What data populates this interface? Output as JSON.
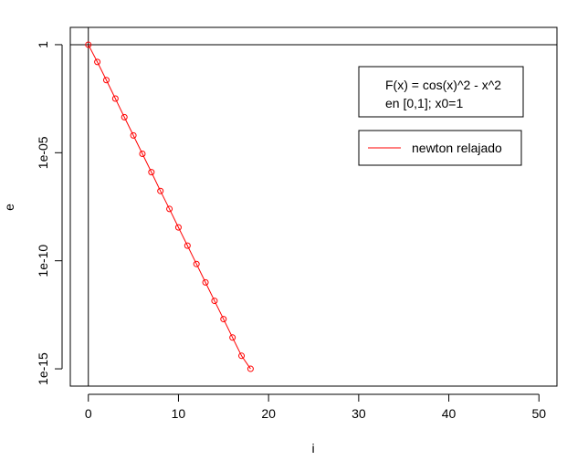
{
  "chart_data": {
    "type": "line",
    "xlabel": "i",
    "ylabel": "e",
    "xlim": [
      -2,
      52
    ],
    "ylim_log10": [
      -15.8,
      0.8
    ],
    "y_scale": "log",
    "x_ticks": [
      0,
      10,
      20,
      30,
      40,
      50
    ],
    "x_tick_labels": [
      "0",
      "10",
      "20",
      "30",
      "40",
      "50"
    ],
    "y_ticks": [
      1,
      1e-05,
      1e-10,
      1e-15
    ],
    "y_tick_labels": [
      "1",
      "1e-05",
      "1e-10",
      "1e-15"
    ],
    "reference_lines": {
      "horizontal_y": 1,
      "vertical_x": 0
    },
    "grid": false,
    "legend_position": "top-right",
    "annotation": [
      "F(x) = cos(x)^2 - x^2",
      "en [0,1]; x0=1"
    ],
    "series": [
      {
        "name": "newton relajado",
        "color": "#ff0000",
        "marker": "open-circle",
        "x": [
          0,
          1,
          2,
          3,
          4,
          5,
          6,
          7,
          8,
          9,
          10,
          11,
          12,
          13,
          14,
          15,
          16,
          17,
          18
        ],
        "y": [
          1,
          0.158,
          0.0229,
          0.0032,
          0.00044,
          6.3e-05,
          8.9e-06,
          1.26e-06,
          1.7e-07,
          2.5e-08,
          3.5e-09,
          5e-10,
          7.1e-11,
          1e-11,
          1.4e-12,
          2e-13,
          2.8e-14,
          4e-15,
          1e-15
        ]
      }
    ]
  }
}
